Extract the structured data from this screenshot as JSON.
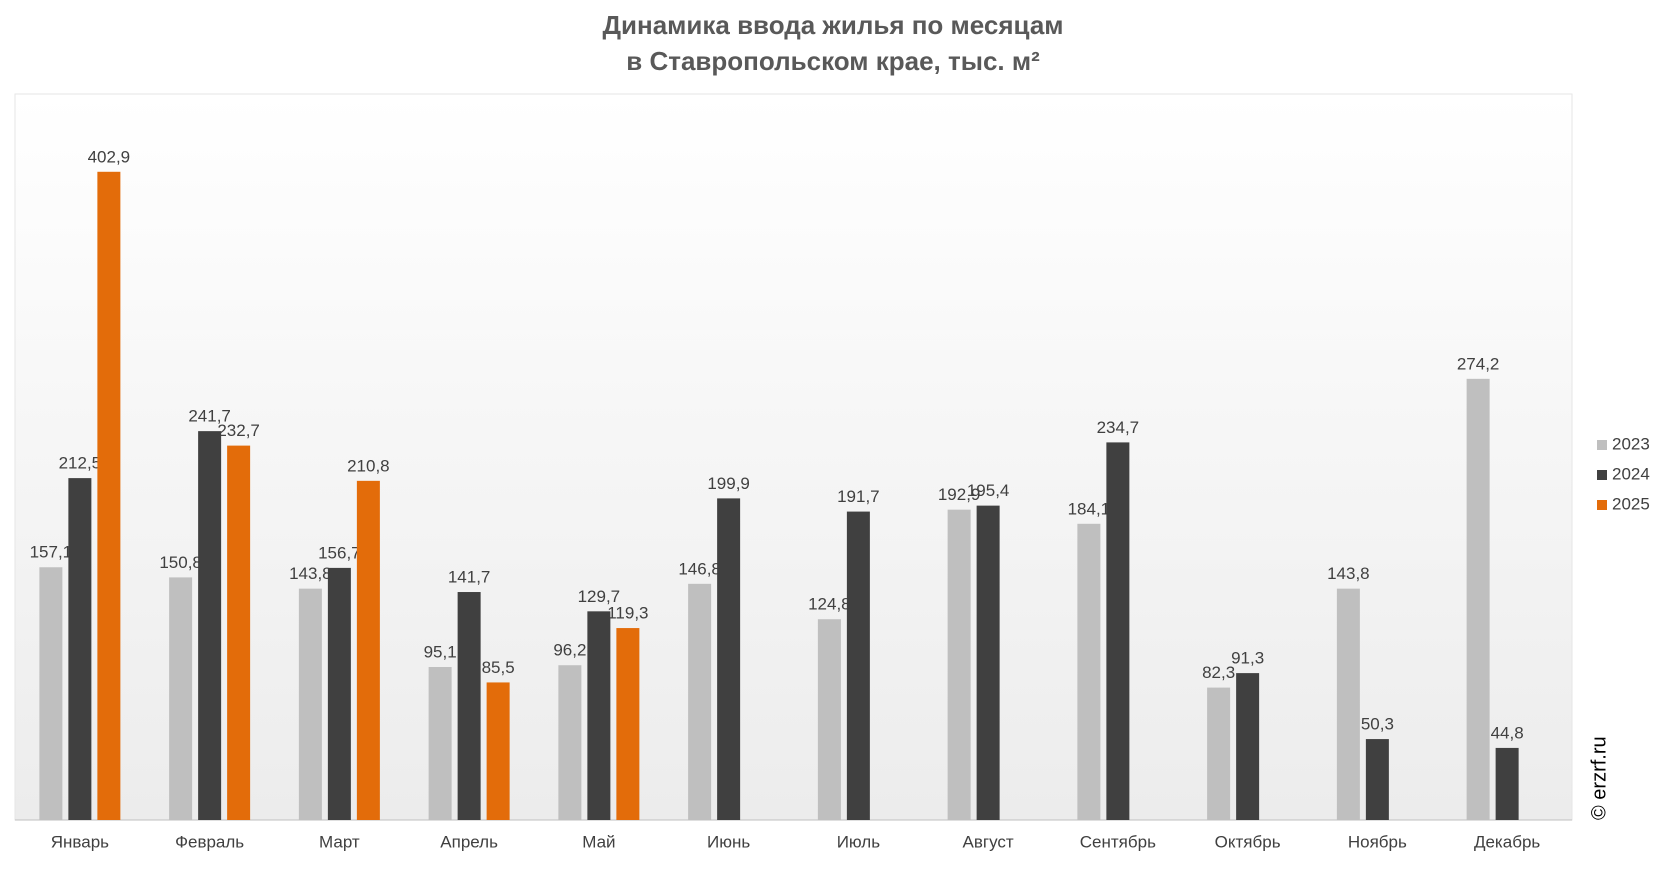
{
  "chart_data": {
    "type": "bar",
    "title": [
      "Динамика ввода жилья по месяцам",
      "в Ставропольском крае, тыс. м²"
    ],
    "categories": [
      "Январь",
      "Февраль",
      "Март",
      "Апрель",
      "Май",
      "Июнь",
      "Июль",
      "Август",
      "Сентябрь",
      "Октябрь",
      "Ноябрь",
      "Декабрь"
    ],
    "series": [
      {
        "name": "2023",
        "color": "#bfbfbf",
        "label_color": "#595959",
        "values": [
          157.1,
          150.8,
          143.8,
          95.1,
          96.2,
          146.8,
          124.8,
          192.9,
          184.1,
          82.3,
          143.8,
          274.2
        ],
        "value_labels": [
          "157,1",
          "150,8",
          "143,8",
          "95,1",
          "96,2",
          "146,8",
          "124,8",
          "192,9",
          "184,1",
          "82,3",
          "143,8",
          "274,2"
        ]
      },
      {
        "name": "2024",
        "color": "#404040",
        "label_color": "#000000",
        "values": [
          212.5,
          241.7,
          156.7,
          141.7,
          129.7,
          199.9,
          191.7,
          195.4,
          234.7,
          91.3,
          50.3,
          44.8
        ],
        "value_labels": [
          "212,5",
          "241,7",
          "156,7",
          "141,7",
          "129,7",
          "199,9",
          "191,7",
          "195,4",
          "234,7",
          "91,3",
          "50,3",
          "44,8"
        ]
      },
      {
        "name": "2025",
        "color": "#e36c0a",
        "label_color": "#e36c0a",
        "values": [
          402.9,
          232.7,
          210.8,
          85.5,
          119.3,
          null,
          null,
          null,
          null,
          null,
          null,
          null
        ],
        "value_labels": [
          "402,9",
          "232,7",
          "210,8",
          "85,5",
          "119,3",
          null,
          null,
          null,
          null,
          null,
          null,
          null
        ]
      }
    ],
    "legend": "right",
    "watermark": "© erzrf.ru"
  }
}
